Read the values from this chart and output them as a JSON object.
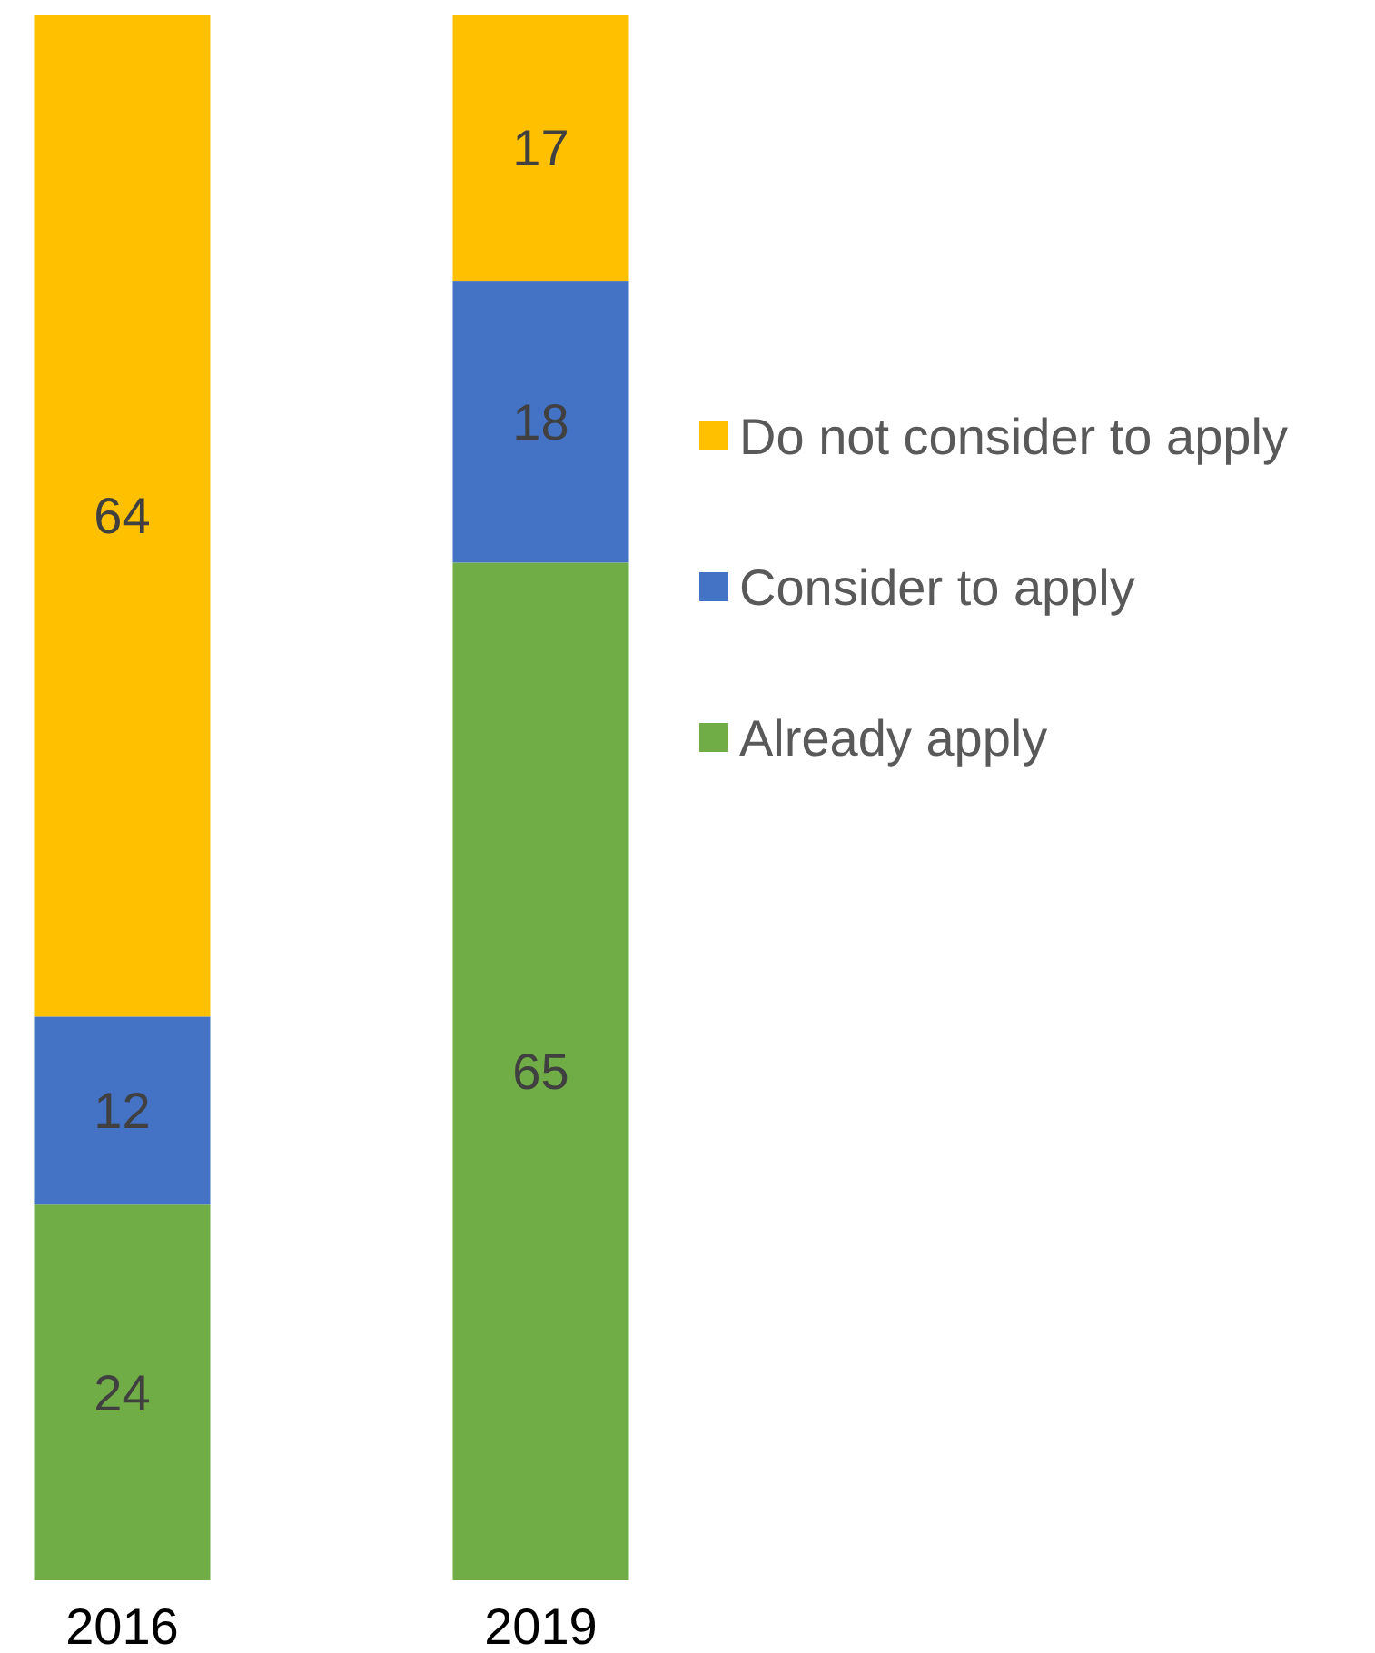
{
  "chart_data": {
    "type": "bar",
    "stacked": true,
    "categories": [
      "2016",
      "2019"
    ],
    "series": [
      {
        "name": "Already apply",
        "color": "#70ad47",
        "values": [
          24,
          65
        ]
      },
      {
        "name": "Consider to apply",
        "color": "#4472c4",
        "values": [
          12,
          18
        ]
      },
      {
        "name": "Do not consider to apply",
        "color": "#ffc000",
        "values": [
          64,
          17
        ]
      }
    ],
    "ylim": [
      0,
      100
    ],
    "tick_labels": "x",
    "data_labels": true,
    "legend": "right"
  }
}
